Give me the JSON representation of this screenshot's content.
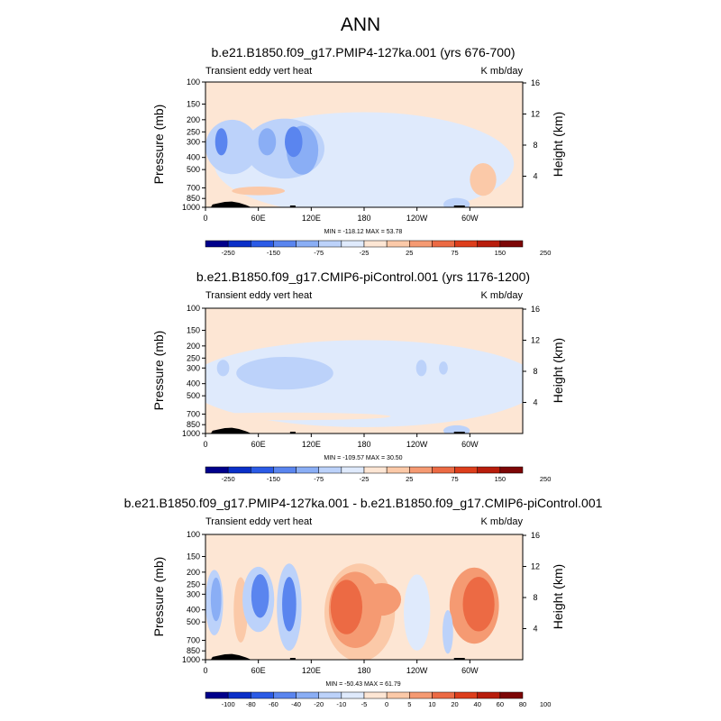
{
  "figure_title": "ANN",
  "colors": {
    "palette": [
      "#00008b",
      "#0a2fc8",
      "#2b5be6",
      "#5a85ef",
      "#8aaef5",
      "#bcd2fa",
      "#dfeafc",
      "#fde6d4",
      "#fbc9a8",
      "#f59a72",
      "#ec6a44",
      "#dd3e1c",
      "#b81d0c",
      "#7d0606"
    ]
  },
  "chart_data": [
    {
      "type": "contour",
      "title": "b.e21.B1850.f09_g17.PMIP4-127ka.001 (yrs 676-700)",
      "left_label": "Transient eddy vert heat",
      "right_label": "K mb/day",
      "ylabel": "Pressure (mb)",
      "y2label": "Height (km)",
      "x_ticks": [
        "0",
        "60E",
        "120E",
        "180",
        "120W",
        "60W"
      ],
      "y_ticks": [
        "100",
        "150",
        "200",
        "250",
        "300",
        "400",
        "500",
        "700",
        "850",
        "1000"
      ],
      "y2_ticks": [
        "16",
        "12",
        "8",
        "4"
      ],
      "stats_text": "MIN = -118.12  MAX =  53.78",
      "colorbar_labels": [
        "-250",
        "-150",
        "-75",
        "-25",
        "25",
        "75",
        "150",
        "250"
      ],
      "min": -118.12,
      "max": 53.78,
      "background_level": 7,
      "features": [
        {
          "lon": 180,
          "p": 450,
          "rx": 170,
          "ry": 0.95,
          "level": 6
        },
        {
          "lon": 270,
          "p": 420,
          "rx": 12,
          "ry": 0.25,
          "level": 6
        },
        {
          "lon": 30,
          "p": 330,
          "rx": 30,
          "ry": 0.5,
          "level": 5
        },
        {
          "lon": 90,
          "p": 340,
          "rx": 45,
          "ry": 0.55,
          "level": 5
        },
        {
          "lon": 110,
          "p": 350,
          "rx": 18,
          "ry": 0.45,
          "level": 4
        },
        {
          "lon": 18,
          "p": 300,
          "rx": 7,
          "ry": 0.25,
          "level": 3
        },
        {
          "lon": 70,
          "p": 300,
          "rx": 10,
          "ry": 0.25,
          "level": 4
        },
        {
          "lon": 100,
          "p": 300,
          "rx": 10,
          "ry": 0.28,
          "level": 3
        },
        {
          "lon": 315,
          "p": 600,
          "rx": 15,
          "ry": 0.3,
          "level": 8
        },
        {
          "lon": 60,
          "p": 740,
          "rx": 30,
          "ry": 0.08,
          "level": 8
        },
        {
          "lon": 285,
          "p": 950,
          "rx": 15,
          "ry": 0.12,
          "level": 5
        }
      ]
    },
    {
      "type": "contour",
      "title": "b.e21.B1850.f09_g17.CMIP6-piControl.001 (yrs 1176-1200)",
      "left_label": "Transient eddy vert heat",
      "right_label": "K mb/day",
      "ylabel": "Pressure (mb)",
      "y2label": "Height (km)",
      "x_ticks": [
        "0",
        "60E",
        "120E",
        "180",
        "120W",
        "60W"
      ],
      "y_ticks": [
        "100",
        "150",
        "200",
        "250",
        "300",
        "400",
        "500",
        "700",
        "850",
        "1000"
      ],
      "y2_ticks": [
        "16",
        "12",
        "8",
        "4"
      ],
      "stats_text": "MIN = -109.57  MAX =  30.50",
      "colorbar_labels": [
        "-250",
        "-150",
        "-75",
        "-25",
        "25",
        "75",
        "150",
        "250"
      ],
      "min": -109.57,
      "max": 30.5,
      "background_level": 7,
      "features": [
        {
          "lon": 180,
          "p": 400,
          "rx": 200,
          "ry": 0.8,
          "level": 6
        },
        {
          "lon": 90,
          "p": 330,
          "rx": 55,
          "ry": 0.3,
          "level": 5
        },
        {
          "lon": 20,
          "p": 300,
          "rx": 7,
          "ry": 0.15,
          "level": 5
        },
        {
          "lon": 245,
          "p": 300,
          "rx": 6,
          "ry": 0.15,
          "level": 5
        },
        {
          "lon": 270,
          "p": 300,
          "rx": 5,
          "ry": 0.12,
          "level": 5
        },
        {
          "lon": 90,
          "p": 730,
          "rx": 120,
          "ry": 0.07,
          "level": 7
        },
        {
          "lon": 285,
          "p": 950,
          "rx": 15,
          "ry": 0.1,
          "level": 5
        }
      ]
    },
    {
      "type": "contour",
      "title": "b.e21.B1850.f09_g17.PMIP4-127ka.001 - b.e21.B1850.f09_g17.CMIP6-piControl.001",
      "left_label": "Transient eddy vert heat",
      "right_label": "K mb/day",
      "ylabel": "Pressure (mb)",
      "y2label": "Height (km)",
      "x_ticks": [
        "0",
        "60E",
        "120E",
        "180",
        "120W",
        "60W"
      ],
      "y_ticks": [
        "100",
        "150",
        "200",
        "250",
        "300",
        "400",
        "500",
        "700",
        "850",
        "1000"
      ],
      "y2_ticks": [
        "16",
        "12",
        "8",
        "4"
      ],
      "stats_text": "MIN = -50.43  MAX =  61.79",
      "colorbar_labels": [
        "-100",
        "-80",
        "-60",
        "-40",
        "-20",
        "-10",
        "-5",
        "0",
        "5",
        "10",
        "20",
        "40",
        "60",
        "80",
        "100"
      ],
      "min": -50.43,
      "max": 61.79,
      "background_level": 7,
      "features": [
        {
          "lon": 175,
          "p": 420,
          "rx": 40,
          "ry": 0.9,
          "level": 8
        },
        {
          "lon": 170,
          "p": 400,
          "rx": 30,
          "ry": 0.7,
          "level": 9
        },
        {
          "lon": 160,
          "p": 380,
          "rx": 18,
          "ry": 0.5,
          "level": 10
        },
        {
          "lon": 200,
          "p": 330,
          "rx": 22,
          "ry": 0.3,
          "level": 9
        },
        {
          "lon": 305,
          "p": 370,
          "rx": 28,
          "ry": 0.7,
          "level": 9
        },
        {
          "lon": 310,
          "p": 360,
          "rx": 18,
          "ry": 0.5,
          "level": 10
        },
        {
          "lon": 40,
          "p": 400,
          "rx": 8,
          "ry": 0.6,
          "level": 8
        },
        {
          "lon": 10,
          "p": 350,
          "rx": 10,
          "ry": 0.6,
          "level": 5
        },
        {
          "lon": 12,
          "p": 330,
          "rx": 6,
          "ry": 0.4,
          "level": 4
        },
        {
          "lon": 60,
          "p": 330,
          "rx": 18,
          "ry": 0.6,
          "level": 5
        },
        {
          "lon": 62,
          "p": 310,
          "rx": 10,
          "ry": 0.4,
          "level": 3
        },
        {
          "lon": 95,
          "p": 380,
          "rx": 14,
          "ry": 0.8,
          "level": 5
        },
        {
          "lon": 95,
          "p": 360,
          "rx": 8,
          "ry": 0.5,
          "level": 3
        },
        {
          "lon": 240,
          "p": 420,
          "rx": 15,
          "ry": 0.7,
          "level": 6
        },
        {
          "lon": 275,
          "p": 600,
          "rx": 6,
          "ry": 0.4,
          "level": 5
        }
      ]
    }
  ]
}
